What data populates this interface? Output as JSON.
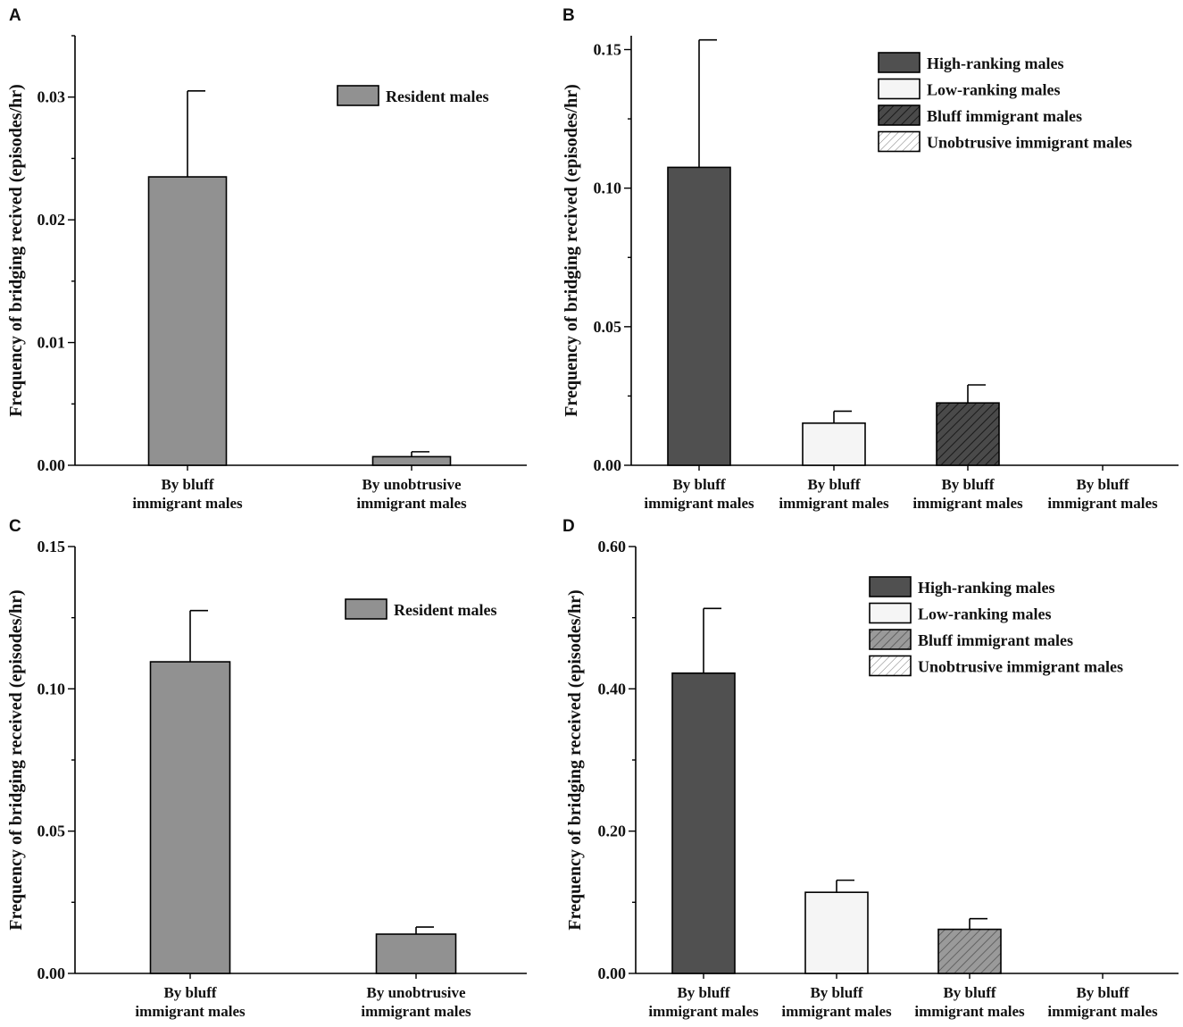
{
  "colors": {
    "high_ranking": "#505050",
    "low_ranking": "#f5f5f5",
    "resident": "#919191",
    "bluff_hatch_b": "#4a4a4a",
    "bluff_hatch_d": "#9a9a9a",
    "unobtrusive": "#ffffff"
  },
  "chart_data": [
    {
      "panel": "A",
      "type": "bar",
      "title": "",
      "xlabel": "",
      "ylabel": "Frequency of bridging recived (episodes/hr)",
      "ylim": [
        0,
        0.035
      ],
      "yticks": [
        "0.00",
        "0.01",
        "0.02",
        "0.03"
      ],
      "ytick_values": [
        0,
        0.01,
        0.02,
        0.03
      ],
      "legend_position": "top-right",
      "legend": [
        {
          "label": "Resident males",
          "style": "resident"
        }
      ],
      "categories": [
        [
          "By bluff",
          "immigrant males"
        ],
        [
          "By unobtrusive",
          "immigrant males"
        ]
      ],
      "bars": [
        {
          "value": 0.0235,
          "error": 0.007,
          "style": "resident"
        },
        {
          "value": 0.0007,
          "error": 0.0004,
          "style": "resident"
        }
      ]
    },
    {
      "panel": "B",
      "type": "bar",
      "title": "",
      "xlabel": "",
      "ylabel": "Frequency of bridging recived (episodes/hr)",
      "ylim": [
        0,
        0.155
      ],
      "yticks": [
        "0.00",
        "0.05",
        "0.10",
        "0.15"
      ],
      "ytick_values": [
        0,
        0.05,
        0.1,
        0.15
      ],
      "legend_position": "top-right",
      "legend": [
        {
          "label": "High-ranking males",
          "style": "high_ranking"
        },
        {
          "label": "Low-ranking males",
          "style": "low_ranking"
        },
        {
          "label": "Bluff immigrant males",
          "style": "bluff_dark"
        },
        {
          "label": "Unobtrusive immigrant males",
          "style": "unobtrusive"
        }
      ],
      "categories": [
        [
          "By bluff",
          "immigrant males"
        ],
        [
          "By bluff",
          "immigrant males"
        ],
        [
          "By bluff",
          "immigrant males"
        ],
        [
          "By bluff",
          "immigrant males"
        ]
      ],
      "bars": [
        {
          "value": 0.1075,
          "error": 0.046,
          "style": "high_ranking"
        },
        {
          "value": 0.0152,
          "error": 0.0043,
          "style": "low_ranking"
        },
        {
          "value": 0.0225,
          "error": 0.0065,
          "style": "bluff_dark"
        },
        {
          "value": 0,
          "error": 0,
          "style": "unobtrusive"
        }
      ]
    },
    {
      "panel": "C",
      "type": "bar",
      "title": "",
      "xlabel": "",
      "ylabel": "Frequency of bridging received (episodes/hr)",
      "ylim": [
        0,
        0.15
      ],
      "yticks": [
        "0.00",
        "0.05",
        "0.10",
        "0.15"
      ],
      "ytick_values": [
        0,
        0.05,
        0.1,
        0.15
      ],
      "legend_position": "top-right",
      "legend": [
        {
          "label": "Resident  males",
          "style": "resident"
        }
      ],
      "categories": [
        [
          "By bluff",
          "immigrant males"
        ],
        [
          "By unobtrusive",
          "immigrant males"
        ]
      ],
      "bars": [
        {
          "value": 0.1095,
          "error": 0.018,
          "style": "resident"
        },
        {
          "value": 0.0138,
          "error": 0.0025,
          "style": "resident"
        }
      ]
    },
    {
      "panel": "D",
      "type": "bar",
      "title": "",
      "xlabel": "",
      "ylabel": "Frequency of bridging received (episodes/hr)",
      "ylim": [
        0,
        0.6
      ],
      "yticks": [
        "0.00",
        "0.20",
        "0.40",
        "0.60"
      ],
      "ytick_values": [
        0,
        0.2,
        0.4,
        0.6
      ],
      "legend_position": "top-right",
      "legend": [
        {
          "label": "High-ranking males",
          "style": "high_ranking"
        },
        {
          "label": "Low-ranking males",
          "style": "low_ranking"
        },
        {
          "label": "Bluff immigrant males",
          "style": "bluff_light"
        },
        {
          "label": "Unobtrusive immigrant males",
          "style": "unobtrusive"
        }
      ],
      "categories": [
        [
          "By bluff",
          "immigrant males"
        ],
        [
          "By bluff",
          "immigrant males"
        ],
        [
          "By bluff",
          "immigrant males"
        ],
        [
          "By bluff",
          "immigrant males"
        ]
      ],
      "bars": [
        {
          "value": 0.422,
          "error": 0.091,
          "style": "high_ranking"
        },
        {
          "value": 0.114,
          "error": 0.017,
          "style": "low_ranking"
        },
        {
          "value": 0.062,
          "error": 0.015,
          "style": "bluff_light"
        },
        {
          "value": 0,
          "error": 0,
          "style": "unobtrusive"
        }
      ]
    }
  ]
}
